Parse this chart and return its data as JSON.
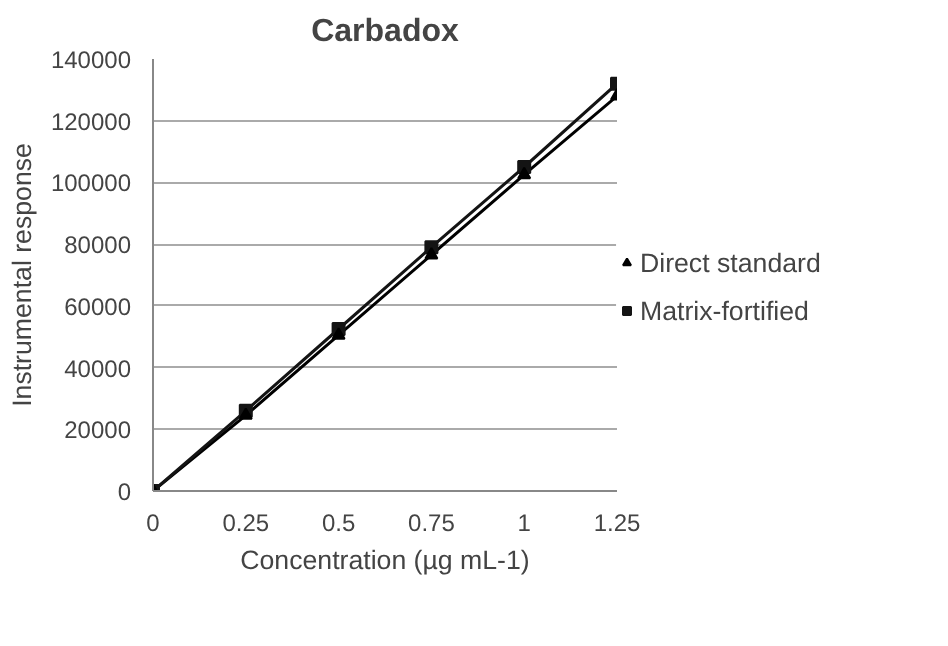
{
  "chart_data": {
    "type": "line",
    "title": "Carbadox",
    "xlabel": "Concentration (µg mL-1)",
    "ylabel": "Instrumental response",
    "x": [
      0,
      0.25,
      0.5,
      0.75,
      1,
      1.25
    ],
    "series": [
      {
        "name": "Direct standard",
        "color": "#000000",
        "marker": "triangle",
        "values": [
          0,
          24500,
          50500,
          76500,
          102500,
          128000
        ]
      },
      {
        "name": "Matrix-fortified",
        "color": "#141414",
        "marker": "square",
        "values": [
          0,
          26000,
          52500,
          79000,
          105000,
          132000
        ]
      }
    ],
    "xlim": [
      0,
      1.25
    ],
    "xticks": [
      0,
      0.25,
      0.5,
      0.75,
      1,
      1.25
    ],
    "ylim": [
      0,
      140000
    ],
    "yticks": [
      0,
      20000,
      40000,
      60000,
      80000,
      100000,
      120000,
      140000
    ],
    "grid": "y",
    "legend": "right"
  }
}
